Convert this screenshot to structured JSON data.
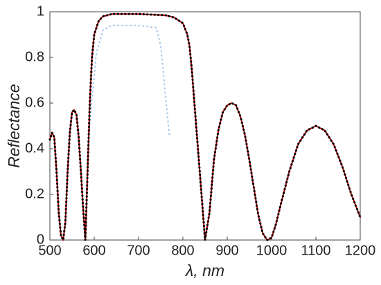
{
  "chart_data": {
    "type": "line",
    "x_label": "λ, nm",
    "y_label": "Reflectance",
    "xlim": [
      500,
      1200
    ],
    "ylim": [
      0,
      1
    ],
    "xticks": [
      500,
      600,
      700,
      800,
      900,
      1000,
      1100,
      1200
    ],
    "yticks": [
      0,
      0.2,
      0.4,
      0.6,
      0.8,
      1
    ],
    "x": [
      500,
      505,
      510,
      515,
      520,
      525,
      530,
      535,
      540,
      545,
      550,
      555,
      560,
      565,
      570,
      575,
      580,
      585,
      590,
      595,
      600,
      610,
      620,
      640,
      700,
      760,
      780,
      800,
      810,
      815,
      820,
      830,
      840,
      850,
      860,
      870,
      880,
      890,
      900,
      910,
      920,
      930,
      940,
      950,
      960,
      970,
      980,
      990,
      1000,
      1010,
      1020,
      1040,
      1060,
      1080,
      1100,
      1120,
      1140,
      1160,
      1180,
      1200
    ],
    "series": [
      {
        "color": "#c0504d",
        "style": "solid",
        "x": [
          588,
          595,
          605,
          620,
          640,
          700,
          740,
          750,
          760,
          770
        ],
        "values": [
          0.45,
          0.62,
          0.82,
          0.92,
          0.94,
          0.94,
          0.93,
          0.85,
          0.65,
          0.45
        ],
        "faint_color": "#9fc3f0"
      },
      {
        "color": "#c00000",
        "style": "solid",
        "values": [
          0.44,
          0.47,
          0.45,
          0.3,
          0.12,
          0.02,
          0.0,
          0.08,
          0.3,
          0.47,
          0.56,
          0.57,
          0.55,
          0.45,
          0.3,
          0.14,
          0.0,
          0.3,
          0.6,
          0.8,
          0.9,
          0.96,
          0.98,
          0.99,
          0.99,
          0.985,
          0.975,
          0.95,
          0.9,
          0.85,
          0.75,
          0.5,
          0.25,
          0.0,
          0.12,
          0.35,
          0.48,
          0.56,
          0.59,
          0.6,
          0.59,
          0.54,
          0.46,
          0.35,
          0.23,
          0.11,
          0.03,
          0.0,
          0.01,
          0.07,
          0.15,
          0.3,
          0.42,
          0.48,
          0.5,
          0.48,
          0.42,
          0.32,
          0.2,
          0.1
        ]
      },
      {
        "color": "#000000",
        "style": "dotted",
        "values": [
          0.44,
          0.47,
          0.45,
          0.3,
          0.12,
          0.02,
          0.0,
          0.08,
          0.3,
          0.47,
          0.56,
          0.57,
          0.55,
          0.45,
          0.3,
          0.14,
          0.0,
          0.3,
          0.6,
          0.8,
          0.9,
          0.96,
          0.98,
          0.99,
          0.99,
          0.985,
          0.975,
          0.95,
          0.9,
          0.85,
          0.75,
          0.5,
          0.25,
          0.0,
          0.12,
          0.35,
          0.48,
          0.56,
          0.59,
          0.6,
          0.59,
          0.54,
          0.46,
          0.35,
          0.23,
          0.11,
          0.03,
          0.0,
          0.01,
          0.07,
          0.15,
          0.3,
          0.42,
          0.48,
          0.5,
          0.48,
          0.42,
          0.32,
          0.2,
          0.1
        ]
      }
    ]
  }
}
